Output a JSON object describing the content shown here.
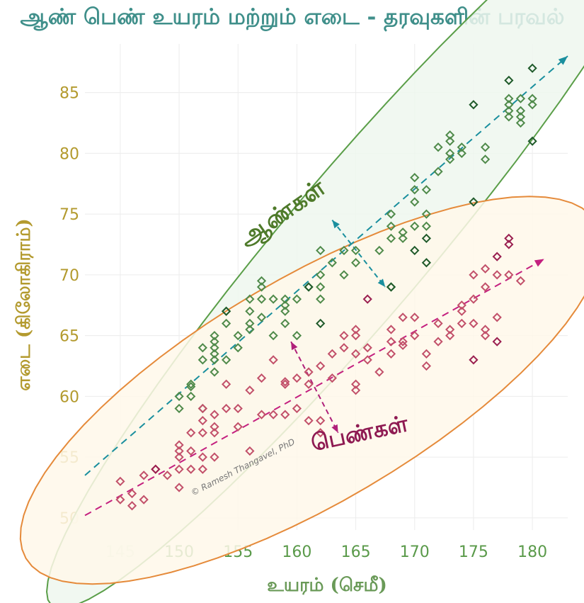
{
  "chart_data": {
    "type": "scatter",
    "title": "ஆண் பெண் உயரம் மற்றும் எடை - தரவுகளின் பரவல்",
    "xlabel": "உயரம் (செமீ)",
    "ylabel": "எடை (கிலோகிராம்)",
    "xlim": [
      142,
      183
    ],
    "ylim": [
      49,
      89
    ],
    "xticks": [
      145,
      150,
      155,
      160,
      165,
      170,
      175,
      180
    ],
    "yticks": [
      50,
      55,
      60,
      65,
      70,
      75,
      80,
      85
    ],
    "grid": true,
    "annotations": {
      "men_label": "ஆண்கள்",
      "women_label": "பெண்கள்",
      "watermark": "© Ramesh Thangavel, PhD"
    },
    "colors": {
      "men_points": "#4f8a4a",
      "men_points_dark": "#1f5a2a",
      "women_points": "#c2506a",
      "women_points_dark": "#9a1f50",
      "men_ellipse_stroke": "#5a9e48",
      "men_ellipse_fill": "#eef7ee",
      "women_ellipse_stroke": "#e58a3a",
      "women_ellipse_fill": "#fff8ea",
      "men_trend": "#1a8f9e",
      "women_trend": "#c4207f",
      "men_arrow": "#1a8f9e",
      "women_arrow": "#b0207a"
    },
    "trend_lines": [
      {
        "series": "men",
        "from": [
          142,
          53.5
        ],
        "to": [
          183,
          88.0
        ]
      },
      {
        "series": "women",
        "from": [
          142,
          50.2
        ],
        "to": [
          181,
          71.3
        ]
      }
    ],
    "ellipses": [
      {
        "series": "men",
        "center": [
          165.3,
          72.7
        ],
        "semi_major_cm": 26.6,
        "semi_minor_cm": 3.2,
        "angle_deg": 49.7
      },
      {
        "series": "women",
        "center": [
          161.2,
          60.5
        ],
        "semi_major_cm": 24.4,
        "semi_minor_cm": 5.0,
        "angle_deg": 30.5
      }
    ],
    "spread_arrows": [
      {
        "series": "men",
        "from": [
          163.0,
          74.5
        ],
        "to": [
          167.5,
          69.0
        ]
      },
      {
        "series": "women",
        "from": [
          159.5,
          64.5
        ],
        "to": [
          163.5,
          57.0
        ]
      }
    ],
    "series": [
      {
        "name": "ஆண்கள்",
        "points": [
          [
            150,
            59
          ],
          [
            150,
            60
          ],
          [
            151,
            61
          ],
          [
            151,
            60
          ],
          [
            151,
            60.8
          ],
          [
            152,
            59
          ],
          [
            152,
            63
          ],
          [
            152,
            64
          ],
          [
            153,
            62
          ],
          [
            153,
            63
          ],
          [
            153,
            63.5
          ],
          [
            153,
            64
          ],
          [
            153,
            64.5
          ],
          [
            153,
            65
          ],
          [
            154,
            63
          ],
          [
            154,
            66
          ],
          [
            154,
            67
          ],
          [
            155,
            64
          ],
          [
            155,
            65
          ],
          [
            156,
            65.5
          ],
          [
            156,
            66
          ],
          [
            156,
            67
          ],
          [
            156,
            68
          ],
          [
            157,
            66.5
          ],
          [
            157,
            68
          ],
          [
            157,
            69
          ],
          [
            157,
            69.5
          ],
          [
            158,
            65
          ],
          [
            158,
            68
          ],
          [
            159,
            66
          ],
          [
            159,
            67
          ],
          [
            159,
            67.5
          ],
          [
            159,
            68
          ],
          [
            160,
            65
          ],
          [
            160,
            68
          ],
          [
            161,
            69
          ],
          [
            162,
            68
          ],
          [
            162,
            69
          ],
          [
            162,
            70
          ],
          [
            162,
            72
          ],
          [
            163,
            71
          ],
          [
            164,
            72
          ],
          [
            164,
            70
          ],
          [
            165,
            71
          ],
          [
            165,
            72
          ],
          [
            167,
            72
          ],
          [
            168,
            69
          ],
          [
            168,
            73
          ],
          [
            168,
            74
          ],
          [
            168,
            75
          ],
          [
            169,
            73
          ],
          [
            169,
            73.5
          ],
          [
            170,
            74
          ],
          [
            170,
            76
          ],
          [
            170,
            77
          ],
          [
            170,
            78
          ],
          [
            171,
            74
          ],
          [
            171,
            75
          ],
          [
            171,
            77
          ],
          [
            172,
            78.5
          ],
          [
            172,
            80.5
          ],
          [
            173,
            79.5
          ],
          [
            173,
            80
          ],
          [
            173,
            81
          ],
          [
            173,
            81.5
          ],
          [
            174,
            80
          ],
          [
            174,
            80.5
          ],
          [
            176,
            79.5
          ],
          [
            176,
            80.5
          ],
          [
            178,
            83
          ],
          [
            178,
            83.5
          ],
          [
            178,
            84
          ],
          [
            178,
            84.5
          ],
          [
            179,
            82.5
          ],
          [
            179,
            83
          ],
          [
            179,
            83.5
          ],
          [
            179,
            84.5
          ],
          [
            180,
            84
          ],
          [
            180,
            84.5
          ]
        ],
        "dark_points": [
          [
            154,
            67
          ],
          [
            161,
            69
          ],
          [
            168,
            69
          ],
          [
            170,
            72
          ],
          [
            171,
            71
          ],
          [
            171,
            73
          ],
          [
            175,
            76
          ],
          [
            175,
            84
          ],
          [
            178,
            86
          ],
          [
            180,
            87
          ],
          [
            180,
            81
          ],
          [
            162,
            66
          ]
        ]
      },
      {
        "name": "பெண்கள்",
        "points": [
          [
            145,
            53
          ],
          [
            145,
            51.5
          ],
          [
            146,
            51
          ],
          [
            146,
            52
          ],
          [
            147,
            51.5
          ],
          [
            147,
            53.5
          ],
          [
            148,
            54
          ],
          [
            149,
            53.5
          ],
          [
            150,
            52.5
          ],
          [
            150,
            54
          ],
          [
            150,
            55
          ],
          [
            150,
            55.5
          ],
          [
            150,
            56
          ],
          [
            151,
            54
          ],
          [
            151,
            55.5
          ],
          [
            151,
            57
          ],
          [
            152,
            54
          ],
          [
            152,
            55
          ],
          [
            152,
            57
          ],
          [
            152,
            58
          ],
          [
            152,
            59
          ],
          [
            153,
            55
          ],
          [
            153,
            57
          ],
          [
            153,
            57.5
          ],
          [
            153,
            58.5
          ],
          [
            154,
            59
          ],
          [
            154,
            61
          ],
          [
            155,
            57.5
          ],
          [
            155,
            59
          ],
          [
            156,
            55.5
          ],
          [
            156,
            60.5
          ],
          [
            157,
            58.5
          ],
          [
            157,
            61.5
          ],
          [
            158,
            58.5
          ],
          [
            158,
            63
          ],
          [
            159,
            58.5
          ],
          [
            159,
            61
          ],
          [
            159,
            61.2
          ],
          [
            160,
            59
          ],
          [
            160,
            61.5
          ],
          [
            161,
            58
          ],
          [
            161,
            61
          ],
          [
            161,
            62
          ],
          [
            162,
            57
          ],
          [
            162,
            58
          ],
          [
            162,
            62.5
          ],
          [
            163,
            61.5
          ],
          [
            163,
            63.5
          ],
          [
            164,
            64
          ],
          [
            164,
            65
          ],
          [
            165,
            60.5
          ],
          [
            165,
            61
          ],
          [
            165,
            63.5
          ],
          [
            165,
            65
          ],
          [
            165,
            65.5
          ],
          [
            166,
            63
          ],
          [
            166,
            64
          ],
          [
            167,
            62
          ],
          [
            168,
            63.5
          ],
          [
            168,
            64.5
          ],
          [
            168,
            65.5
          ],
          [
            169,
            64.5
          ],
          [
            169,
            64.2
          ],
          [
            169,
            66.5
          ],
          [
            170,
            65
          ],
          [
            170,
            66.5
          ],
          [
            171,
            62.5
          ],
          [
            171,
            63.5
          ],
          [
            172,
            64.5
          ],
          [
            172,
            66
          ],
          [
            173,
            65
          ],
          [
            173,
            65.5
          ],
          [
            174,
            66
          ],
          [
            174,
            67
          ],
          [
            174,
            67.5
          ],
          [
            175,
            66
          ],
          [
            175,
            68
          ],
          [
            175,
            70
          ],
          [
            176,
            65
          ],
          [
            176,
            65.5
          ],
          [
            176,
            69
          ],
          [
            176,
            70.5
          ],
          [
            177,
            66.5
          ],
          [
            177,
            70
          ],
          [
            178,
            70
          ],
          [
            179,
            69.5
          ]
        ],
        "dark_points": [
          [
            166,
            68
          ],
          [
            175,
            63
          ],
          [
            177,
            64.5
          ],
          [
            177,
            71.5
          ],
          [
            178,
            73
          ],
          [
            178,
            72.5
          ],
          [
            148,
            54
          ]
        ]
      }
    ]
  }
}
